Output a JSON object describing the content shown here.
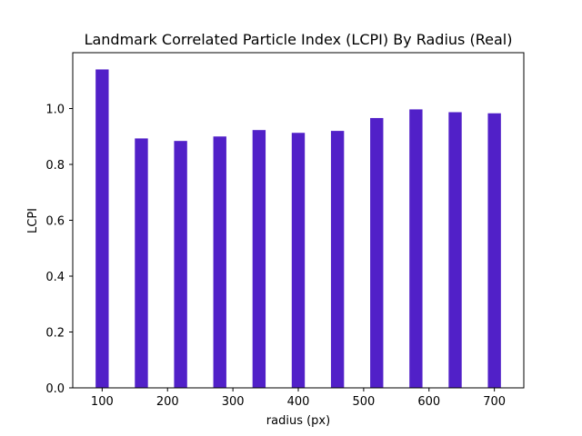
{
  "chart_data": {
    "type": "bar",
    "title": "Landmark Correlated Particle Index (LCPI) By Radius (Real)",
    "xlabel": "radius (px)",
    "ylabel": "LCPI",
    "x": [
      100,
      160,
      220,
      280,
      340,
      400,
      460,
      520,
      580,
      640,
      700
    ],
    "values": [
      1.14,
      0.893,
      0.884,
      0.9,
      0.923,
      0.913,
      0.92,
      0.966,
      0.997,
      0.987,
      0.983
    ],
    "bar_width": 20,
    "xlim": [
      55,
      745
    ],
    "ylim": [
      0,
      1.2
    ],
    "xticks": [
      100,
      200,
      300,
      400,
      500,
      600,
      700
    ],
    "yticks": [
      0.0,
      0.2,
      0.4,
      0.6,
      0.8,
      1.0
    ],
    "xtick_labels": [
      "100",
      "200",
      "300",
      "400",
      "500",
      "600",
      "700"
    ],
    "ytick_labels": [
      "0.0",
      "0.2",
      "0.4",
      "0.6",
      "0.8",
      "1.0"
    ],
    "bar_color": "#5120c8",
    "grid": false
  }
}
